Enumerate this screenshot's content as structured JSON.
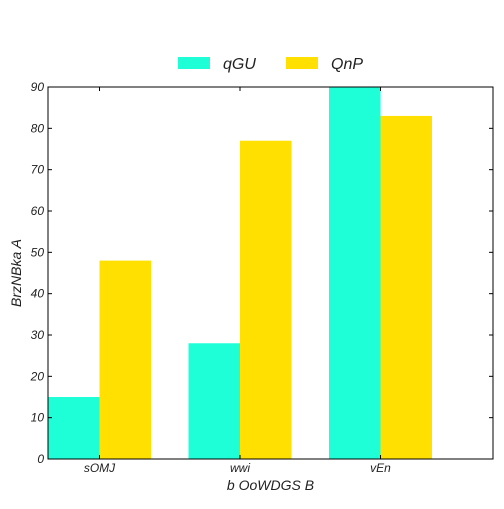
{
  "chart_data": {
    "type": "bar",
    "title": "",
    "xlabel": "b OoWDGS B",
    "ylabel": "BrzNBka A",
    "categories": [
      "sOMJ",
      "wwi",
      "vEn"
    ],
    "series": [
      {
        "name": "qGU",
        "color": "#1effd8",
        "values": [
          15,
          28,
          90
        ]
      },
      {
        "name": "QnP",
        "color": "#ffe000",
        "values": [
          48,
          77,
          83
        ]
      }
    ],
    "ylim": [
      0,
      90
    ],
    "yticks": [
      0,
      10,
      20,
      30,
      40,
      50,
      60,
      70,
      80,
      90
    ],
    "grid": false,
    "legend_position": "top-center"
  }
}
